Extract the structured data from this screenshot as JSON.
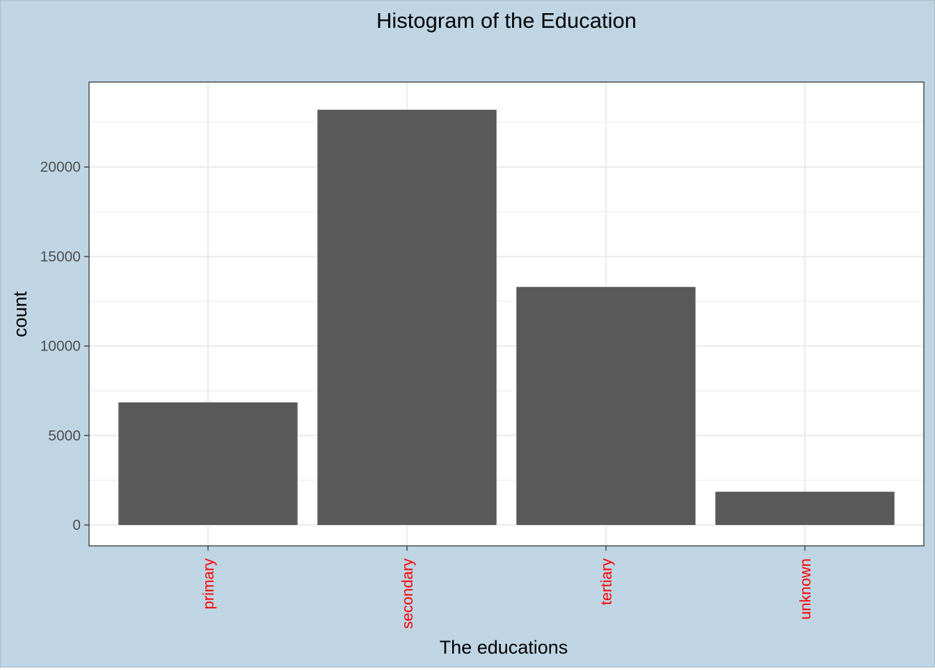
{
  "chart_data": {
    "type": "bar",
    "title": "Histogram of the Education",
    "xlabel": "The educations",
    "ylabel": "count",
    "categories": [
      "primary",
      "secondary",
      "tertiary",
      "unknown"
    ],
    "values": [
      6851,
      23202,
      13301,
      1857
    ],
    "ylim": [
      0,
      24361
    ],
    "yticks": [
      0,
      5000,
      10000,
      15000,
      20000
    ],
    "ytick_labels": [
      "0",
      "5000",
      "10000",
      "15000",
      "20000"
    ],
    "grid": true,
    "legend": "none",
    "colors": {
      "background": "#bfd5e4",
      "panel": "#ffffff",
      "bar": "#595959",
      "grid": "#ebebeb",
      "x_tick_label": "#ff0000",
      "y_tick_label": "#4d4d4d",
      "text": "#000000"
    }
  }
}
